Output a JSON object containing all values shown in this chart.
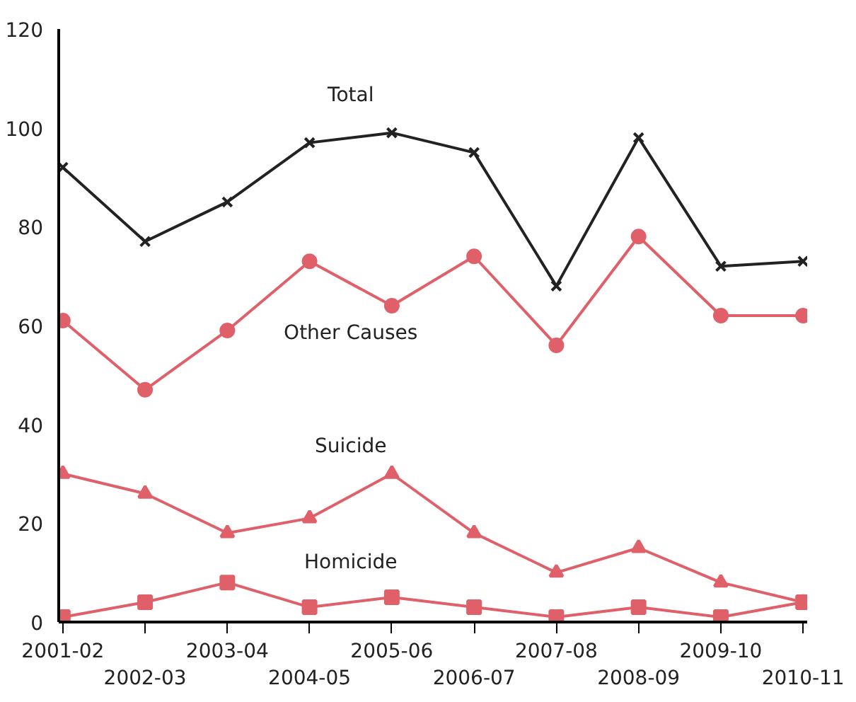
{
  "chart_data": {
    "type": "line",
    "categories": [
      "2001-02",
      "2002-03",
      "2003-04",
      "2004-05",
      "2005-06",
      "2006-07",
      "2007-08",
      "2008-09",
      "2009-10",
      "2010-11"
    ],
    "series": [
      {
        "name": "Total",
        "color": "#222222",
        "marker": "cross",
        "values": [
          92,
          77,
          85,
          97,
          99,
          95,
          68,
          98,
          72,
          73
        ]
      },
      {
        "name": "Other Causes",
        "color": "#e0606a",
        "marker": "circle",
        "values": [
          61,
          47,
          59,
          73,
          64,
          74,
          56,
          78,
          62,
          62
        ]
      },
      {
        "name": "Suicide",
        "color": "#e0606a",
        "marker": "triangle",
        "values": [
          30,
          26,
          18,
          21,
          30,
          18,
          10,
          15,
          8,
          4
        ]
      },
      {
        "name": "Homicide",
        "color": "#e0606a",
        "marker": "square",
        "values": [
          1,
          4,
          8,
          3,
          5,
          3,
          1,
          3,
          1,
          4
        ]
      }
    ],
    "ylim": [
      0,
      120
    ],
    "yticks": [
      0,
      20,
      40,
      60,
      80,
      100,
      120
    ],
    "grid": false,
    "legend": false
  }
}
